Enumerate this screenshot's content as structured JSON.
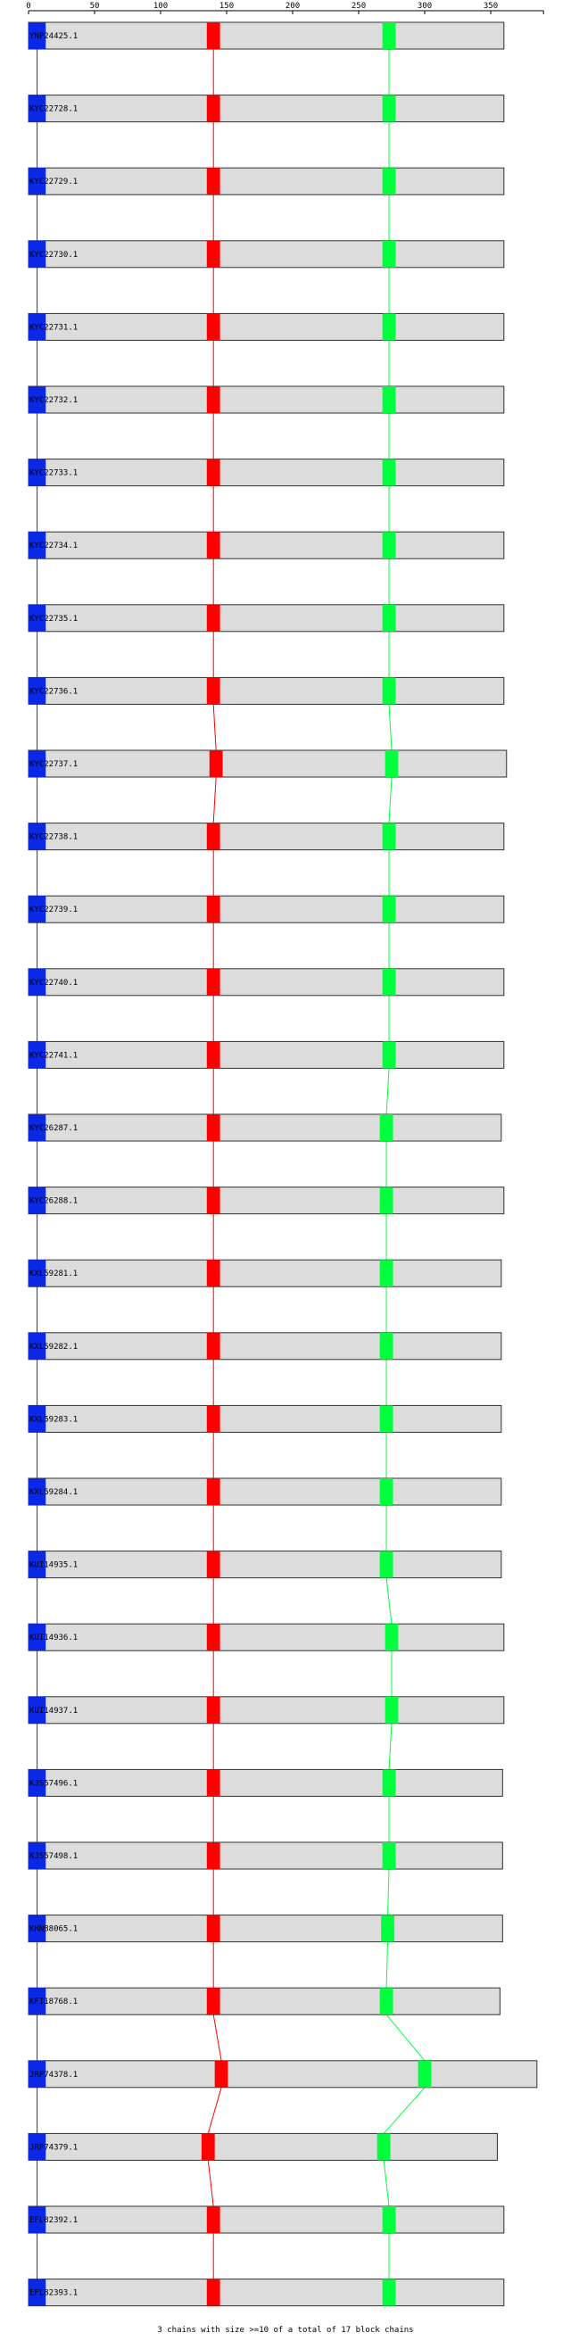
{
  "chart_data": {
    "type": "block-alignment",
    "axis": {
      "ticks": [
        0,
        50,
        100,
        150,
        200,
        250,
        300,
        350
      ],
      "range": [
        0,
        390
      ]
    },
    "colors": {
      "chain_fill": "#dcdcdc",
      "chain_stroke": "#303030",
      "block1": "#0a28e6",
      "block2": "#ff0000",
      "block3": "#00ff3c",
      "axis": "#000000"
    },
    "block_colors": [
      "#0a28e6",
      "#ff0000",
      "#00ff3c"
    ],
    "chains": [
      {
        "label": "YNP24425.1",
        "length": 360,
        "blocks": [
          [
            0,
            13
          ],
          [
            135,
            145
          ],
          [
            268,
            278
          ]
        ]
      },
      {
        "label": "KYC22728.1",
        "length": 360,
        "blocks": [
          [
            0,
            13
          ],
          [
            135,
            145
          ],
          [
            268,
            278
          ]
        ]
      },
      {
        "label": "KYC22729.1",
        "length": 360,
        "blocks": [
          [
            0,
            13
          ],
          [
            135,
            145
          ],
          [
            268,
            278
          ]
        ]
      },
      {
        "label": "KYC22730.1",
        "length": 360,
        "blocks": [
          [
            0,
            13
          ],
          [
            135,
            145
          ],
          [
            268,
            278
          ]
        ]
      },
      {
        "label": "KYC22731.1",
        "length": 360,
        "blocks": [
          [
            0,
            13
          ],
          [
            135,
            145
          ],
          [
            268,
            278
          ]
        ]
      },
      {
        "label": "KYC22732.1",
        "length": 360,
        "blocks": [
          [
            0,
            13
          ],
          [
            135,
            145
          ],
          [
            268,
            278
          ]
        ]
      },
      {
        "label": "KYC22733.1",
        "length": 360,
        "blocks": [
          [
            0,
            13
          ],
          [
            135,
            145
          ],
          [
            268,
            278
          ]
        ]
      },
      {
        "label": "KYC22734.1",
        "length": 360,
        "blocks": [
          [
            0,
            13
          ],
          [
            135,
            145
          ],
          [
            268,
            278
          ]
        ]
      },
      {
        "label": "KYC22735.1",
        "length": 360,
        "blocks": [
          [
            0,
            13
          ],
          [
            135,
            145
          ],
          [
            268,
            278
          ]
        ]
      },
      {
        "label": "KYC22736.1",
        "length": 360,
        "blocks": [
          [
            0,
            13
          ],
          [
            135,
            145
          ],
          [
            268,
            278
          ]
        ]
      },
      {
        "label": "KYC22737.1",
        "length": 362,
        "blocks": [
          [
            0,
            13
          ],
          [
            137,
            147
          ],
          [
            270,
            280
          ]
        ]
      },
      {
        "label": "KYC22738.1",
        "length": 360,
        "blocks": [
          [
            0,
            13
          ],
          [
            135,
            145
          ],
          [
            268,
            278
          ]
        ]
      },
      {
        "label": "KYC22739.1",
        "length": 360,
        "blocks": [
          [
            0,
            13
          ],
          [
            135,
            145
          ],
          [
            268,
            278
          ]
        ]
      },
      {
        "label": "KYC22740.1",
        "length": 360,
        "blocks": [
          [
            0,
            13
          ],
          [
            135,
            145
          ],
          [
            268,
            278
          ]
        ]
      },
      {
        "label": "KYC22741.1",
        "length": 360,
        "blocks": [
          [
            0,
            13
          ],
          [
            135,
            145
          ],
          [
            268,
            278
          ]
        ]
      },
      {
        "label": "KYC26287.1",
        "length": 358,
        "blocks": [
          [
            0,
            13
          ],
          [
            135,
            145
          ],
          [
            266,
            276
          ]
        ]
      },
      {
        "label": "KYC26288.1",
        "length": 360,
        "blocks": [
          [
            0,
            13
          ],
          [
            135,
            145
          ],
          [
            266,
            276
          ]
        ]
      },
      {
        "label": "KXL59281.1",
        "length": 358,
        "blocks": [
          [
            0,
            13
          ],
          [
            135,
            145
          ],
          [
            266,
            276
          ]
        ]
      },
      {
        "label": "KXL59282.1",
        "length": 358,
        "blocks": [
          [
            0,
            13
          ],
          [
            135,
            145
          ],
          [
            266,
            276
          ]
        ]
      },
      {
        "label": "KXL59283.1",
        "length": 358,
        "blocks": [
          [
            0,
            13
          ],
          [
            135,
            145
          ],
          [
            266,
            276
          ]
        ]
      },
      {
        "label": "KXL59284.1",
        "length": 358,
        "blocks": [
          [
            0,
            13
          ],
          [
            135,
            145
          ],
          [
            266,
            276
          ]
        ]
      },
      {
        "label": "KUI14935.1",
        "length": 358,
        "blocks": [
          [
            0,
            13
          ],
          [
            135,
            145
          ],
          [
            266,
            276
          ]
        ]
      },
      {
        "label": "KUI14936.1",
        "length": 360,
        "blocks": [
          [
            0,
            13
          ],
          [
            135,
            145
          ],
          [
            270,
            280
          ]
        ]
      },
      {
        "label": "KUI14937.1",
        "length": 360,
        "blocks": [
          [
            0,
            13
          ],
          [
            135,
            145
          ],
          [
            270,
            280
          ]
        ]
      },
      {
        "label": "KJS57496.1",
        "length": 359,
        "blocks": [
          [
            0,
            13
          ],
          [
            135,
            145
          ],
          [
            268,
            278
          ]
        ]
      },
      {
        "label": "KJS57498.1",
        "length": 359,
        "blocks": [
          [
            0,
            13
          ],
          [
            135,
            145
          ],
          [
            268,
            278
          ]
        ]
      },
      {
        "label": "KHN88065.1",
        "length": 359,
        "blocks": [
          [
            0,
            13
          ],
          [
            135,
            145
          ],
          [
            267,
            277
          ]
        ]
      },
      {
        "label": "KFI18768.1",
        "length": 357,
        "blocks": [
          [
            0,
            13
          ],
          [
            135,
            145
          ],
          [
            266,
            276
          ]
        ]
      },
      {
        "label": "JRP74378.1",
        "length": 385,
        "blocks": [
          [
            0,
            13
          ],
          [
            141,
            151
          ],
          [
            295,
            305
          ]
        ]
      },
      {
        "label": "JRP74379.1",
        "length": 355,
        "blocks": [
          [
            0,
            13
          ],
          [
            131,
            141
          ],
          [
            264,
            274
          ]
        ]
      },
      {
        "label": "EFL82392.1",
        "length": 360,
        "blocks": [
          [
            0,
            13
          ],
          [
            135,
            145
          ],
          [
            268,
            278
          ]
        ]
      },
      {
        "label": "EFL82393.1",
        "length": 360,
        "blocks": [
          [
            0,
            13
          ],
          [
            135,
            145
          ],
          [
            268,
            278
          ]
        ]
      }
    ]
  },
  "footer": {
    "text": "3 chains with size >=10 of a total of 17 block chains"
  }
}
